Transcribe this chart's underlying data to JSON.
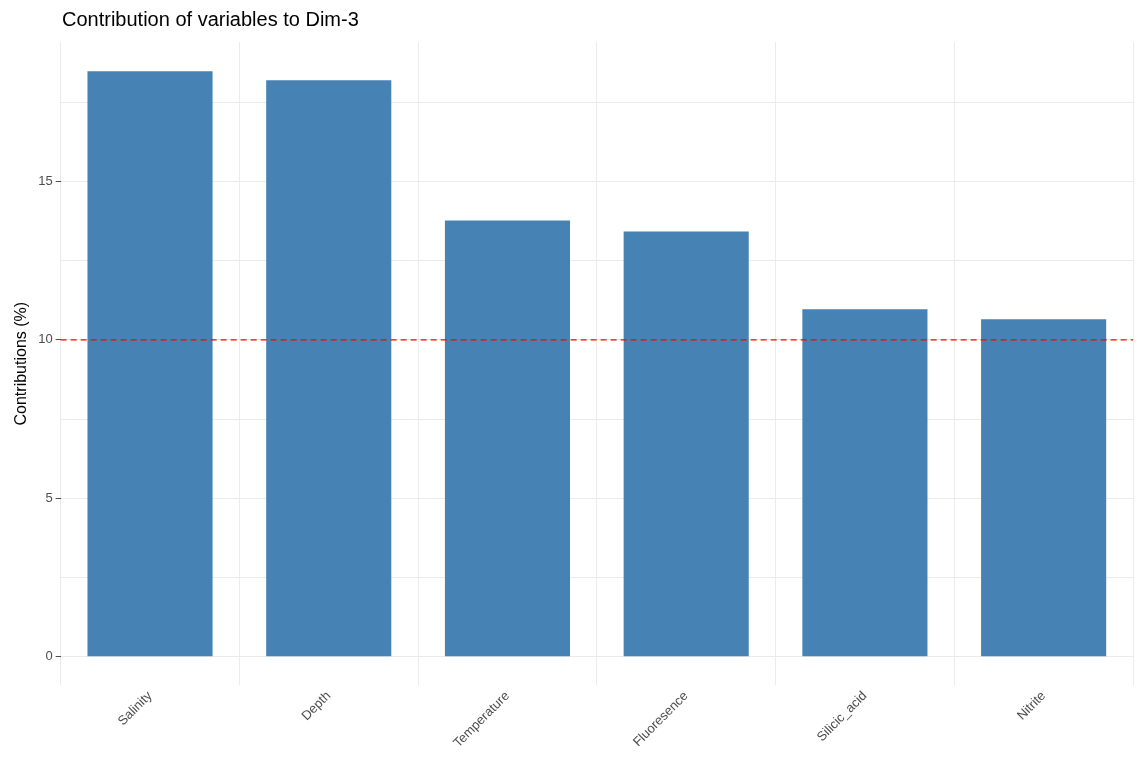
{
  "chart_data": {
    "type": "bar",
    "title": "Contribution of variables to Dim-3",
    "ylabel": "Contributions (%)",
    "categories": [
      "Salinity",
      "Depth",
      "Temperature",
      "Fluoresence",
      "Silicic_acid",
      "Nitrite"
    ],
    "values": [
      18.48,
      18.19,
      13.77,
      13.42,
      10.97,
      10.65
    ],
    "color": "#4682b4",
    "ylim": [
      -0.9,
      19.4
    ],
    "yticks": [
      0,
      {
        "value": 2.5,
        "label": null
      },
      5,
      {
        "value": 7.5,
        "label": null
      },
      10,
      {
        "value": 12.5,
        "label": null
      },
      15,
      {
        "value": 17.5,
        "label": null
      }
    ],
    "ref_lines": [
      {
        "axis": "y",
        "value": 10,
        "color": "#ff0000",
        "line_style": "dashed"
      }
    ],
    "grid": true,
    "legend": false
  }
}
